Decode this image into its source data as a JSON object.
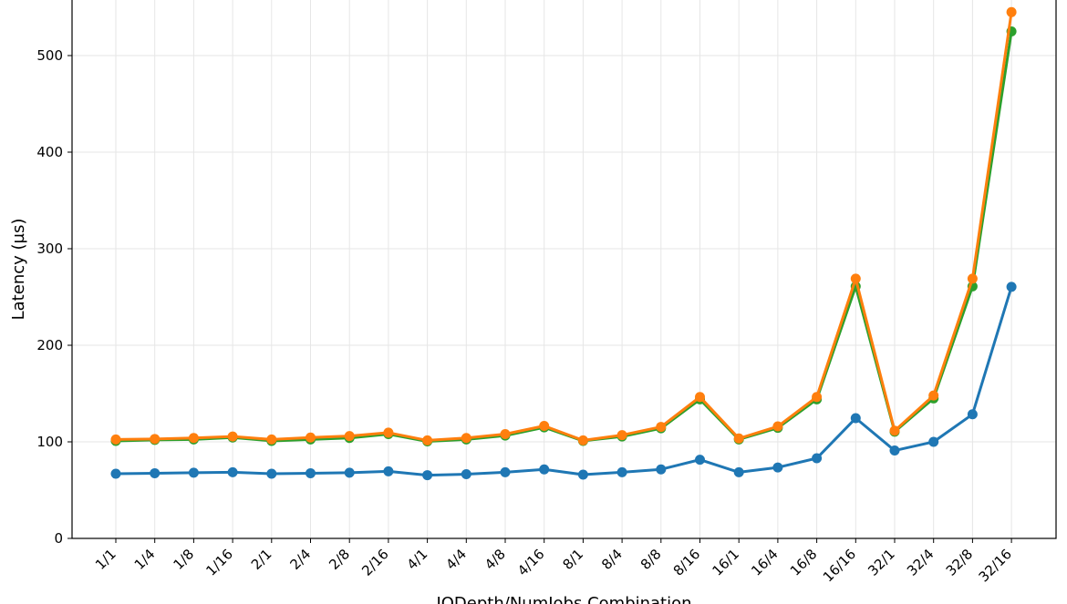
{
  "chart_data": {
    "type": "line",
    "title": "",
    "xlabel": "IODepth/NumJobs Combination",
    "ylabel": "Latency (µs)",
    "ylim": [
      0,
      560
    ],
    "yticks": [
      0,
      100,
      200,
      300,
      400,
      500
    ],
    "grid": true,
    "categories": [
      "1/1",
      "1/4",
      "1/8",
      "1/16",
      "2/1",
      "2/4",
      "2/8",
      "2/16",
      "4/1",
      "4/4",
      "4/8",
      "4/16",
      "8/1",
      "8/4",
      "8/8",
      "8/16",
      "16/1",
      "16/4",
      "16/8",
      "16/16",
      "32/1",
      "32/4",
      "32/8",
      "32/16"
    ],
    "series": [
      {
        "color": "#1f77b4",
        "values": [
          67,
          67.5,
          68,
          68.5,
          67,
          67.5,
          68,
          69.5,
          65.5,
          66.5,
          68.5,
          71.5,
          66,
          68.5,
          71.5,
          81.5,
          68.5,
          73.5,
          83,
          124.5,
          91,
          100,
          128.5,
          260.5
        ]
      },
      {
        "color": "#2ca02c",
        "values": [
          101,
          102,
          102.5,
          104.5,
          101,
          102.5,
          104,
          108,
          100.5,
          102.5,
          106.5,
          115,
          101,
          105.5,
          114,
          144,
          102.5,
          114.5,
          144,
          261,
          110.5,
          145,
          261,
          525
        ]
      },
      {
        "color": "#ff7f0e",
        "values": [
          102.5,
          103,
          104,
          105.5,
          102.5,
          104.5,
          106,
          109.5,
          101.5,
          104,
          108,
          116.5,
          101.5,
          107,
          115.5,
          146.5,
          103.5,
          116,
          146.5,
          269,
          111.5,
          148,
          269,
          545
        ]
      }
    ]
  }
}
